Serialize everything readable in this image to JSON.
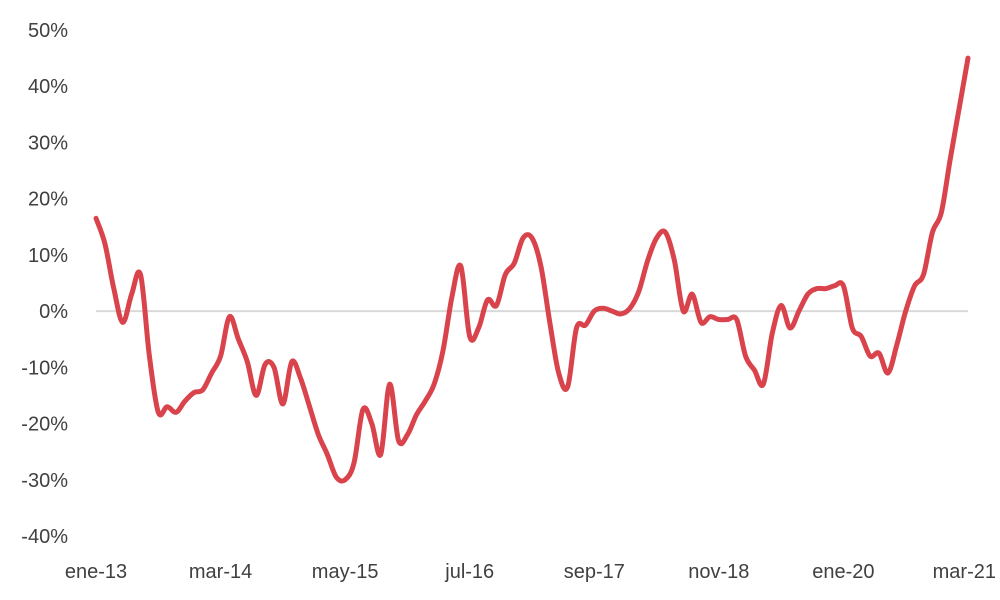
{
  "chart_data": {
    "type": "line",
    "title": "",
    "xlabel": "",
    "ylabel": "",
    "ylim": [
      -40,
      50
    ],
    "y_ticks": [
      {
        "value": 50,
        "label": "50%"
      },
      {
        "value": 40,
        "label": "40%"
      },
      {
        "value": 30,
        "label": "30%"
      },
      {
        "value": 20,
        "label": "20%"
      },
      {
        "value": 10,
        "label": "10%"
      },
      {
        "value": 0,
        "label": "0%"
      },
      {
        "value": -10,
        "label": "-10%"
      },
      {
        "value": -20,
        "label": "-20%"
      },
      {
        "value": -30,
        "label": "-30%"
      },
      {
        "value": -40,
        "label": "-40%"
      }
    ],
    "x_ticks": [
      {
        "value": "2013-01",
        "label": "ene-13"
      },
      {
        "value": "2014-03",
        "label": "mar-14"
      },
      {
        "value": "2015-05",
        "label": "may-15"
      },
      {
        "value": "2016-07",
        "label": "jul-16"
      },
      {
        "value": "2017-09",
        "label": "sep-17"
      },
      {
        "value": "2018-11",
        "label": "nov-18"
      },
      {
        "value": "2020-01",
        "label": "ene-20"
      },
      {
        "value": "2021-03",
        "label": "mar-21"
      }
    ],
    "grid": false,
    "zero_line": true,
    "legend": "none",
    "series": [
      {
        "color": "#d9434b",
        "x": [
          "2013-01",
          "2013-02",
          "2013-03",
          "2013-04",
          "2013-05",
          "2013-06",
          "2013-07",
          "2013-08",
          "2013-09",
          "2013-10",
          "2013-11",
          "2013-12",
          "2014-01",
          "2014-02",
          "2014-03",
          "2014-04",
          "2014-05",
          "2014-06",
          "2014-07",
          "2014-08",
          "2014-09",
          "2014-10",
          "2014-11",
          "2014-12",
          "2015-01",
          "2015-02",
          "2015-03",
          "2015-04",
          "2015-05",
          "2015-06",
          "2015-07",
          "2015-08",
          "2015-09",
          "2015-10",
          "2015-11",
          "2015-12",
          "2016-01",
          "2016-02",
          "2016-03",
          "2016-04",
          "2016-05",
          "2016-06",
          "2016-07",
          "2016-08",
          "2016-09",
          "2016-10",
          "2016-11",
          "2016-12",
          "2017-01",
          "2017-02",
          "2017-03",
          "2017-04",
          "2017-05",
          "2017-06",
          "2017-07",
          "2017-08",
          "2017-09",
          "2017-10",
          "2017-11",
          "2017-12",
          "2018-01",
          "2018-02",
          "2018-03",
          "2018-04",
          "2018-05",
          "2018-06",
          "2018-07",
          "2018-08",
          "2018-09",
          "2018-10",
          "2018-11",
          "2018-12",
          "2019-01",
          "2019-02",
          "2019-03",
          "2019-04",
          "2019-05",
          "2019-06",
          "2019-07",
          "2019-08",
          "2019-09",
          "2019-10",
          "2019-11",
          "2019-12",
          "2020-01",
          "2020-02",
          "2020-03",
          "2020-04",
          "2020-05",
          "2020-06",
          "2020-07",
          "2020-08",
          "2020-09",
          "2020-10",
          "2020-11",
          "2020-12",
          "2021-01",
          "2021-02",
          "2021-03"
        ],
        "values": [
          16.5,
          12,
          4,
          -2,
          3,
          6.5,
          -8,
          -18,
          -17,
          -18,
          -16,
          -14.5,
          -14,
          -11,
          -8,
          -1,
          -5,
          -9,
          -15,
          -9.5,
          -10,
          -16.5,
          -9,
          -12,
          -17,
          -22,
          -25.5,
          -29.5,
          -30,
          -27,
          -17.5,
          -20,
          -25.5,
          -13,
          -23,
          -22,
          -18.5,
          -16,
          -13,
          -7,
          2.5,
          8,
          -4.5,
          -3,
          2,
          1,
          6.5,
          8.5,
          13,
          13,
          8,
          -2,
          -11,
          -13.5,
          -3,
          -2.5,
          0,
          0.5,
          0,
          -0.5,
          0.5,
          3.5,
          9,
          13,
          14,
          9,
          0,
          3,
          -2,
          -1,
          -1.5,
          -1.5,
          -1.5,
          -8,
          -10.5,
          -13,
          -4,
          1,
          -3,
          0,
          3,
          4,
          4,
          4.5,
          4.5,
          -3,
          -4.5,
          -8,
          -7.5,
          -11,
          -6,
          0,
          4.5,
          6.5,
          14,
          17.5,
          27,
          36,
          45
        ]
      }
    ]
  }
}
